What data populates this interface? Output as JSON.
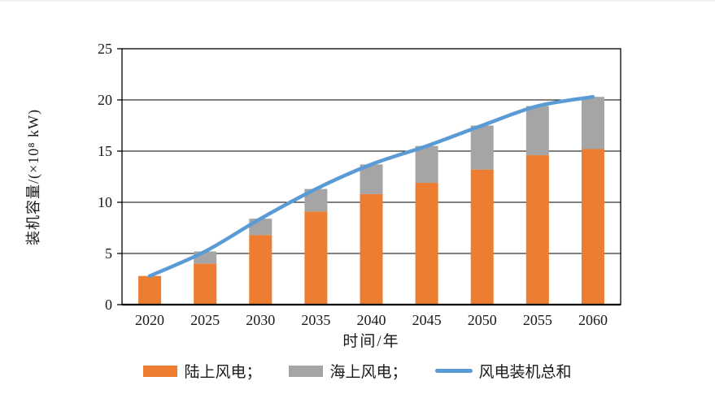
{
  "chart_data": {
    "type": "bar",
    "subtype": "stacked-bar-with-line",
    "title": "",
    "xlabel": "时间/年",
    "ylabel": "装机容量/(×10⁸ kW)",
    "categories": [
      "2020",
      "2025",
      "2030",
      "2035",
      "2040",
      "2045",
      "2050",
      "2055",
      "2060"
    ],
    "series": [
      {
        "name": "陆上风电",
        "type": "bar",
        "color": "#ED7D31",
        "values": [
          2.8,
          4.0,
          6.8,
          9.1,
          10.8,
          11.9,
          13.2,
          14.6,
          15.2
        ]
      },
      {
        "name": "海上风电",
        "type": "bar",
        "color": "#A5A5A5",
        "values": [
          0.0,
          1.2,
          1.6,
          2.2,
          2.9,
          3.6,
          4.3,
          4.8,
          5.1
        ]
      },
      {
        "name": "风电装机总和",
        "type": "line",
        "color": "#5B9BD5",
        "values": [
          2.8,
          5.2,
          8.4,
          11.3,
          13.7,
          15.5,
          17.5,
          19.4,
          20.3
        ]
      }
    ],
    "ylim": [
      0,
      25
    ],
    "yticks": [
      0,
      5,
      10,
      15,
      20,
      25
    ],
    "grid": "horizontal",
    "gridline_color": "#000000",
    "axis_color": "#000000",
    "legend_position": "bottom"
  },
  "legend": {
    "items": [
      {
        "label": "陆上风电；",
        "swatch": "bar",
        "color": "#ED7D31"
      },
      {
        "label": "海上风电；",
        "swatch": "bar",
        "color": "#A5A5A5"
      },
      {
        "label": "风电装机总和",
        "swatch": "line",
        "color": "#5B9BD5"
      }
    ]
  }
}
